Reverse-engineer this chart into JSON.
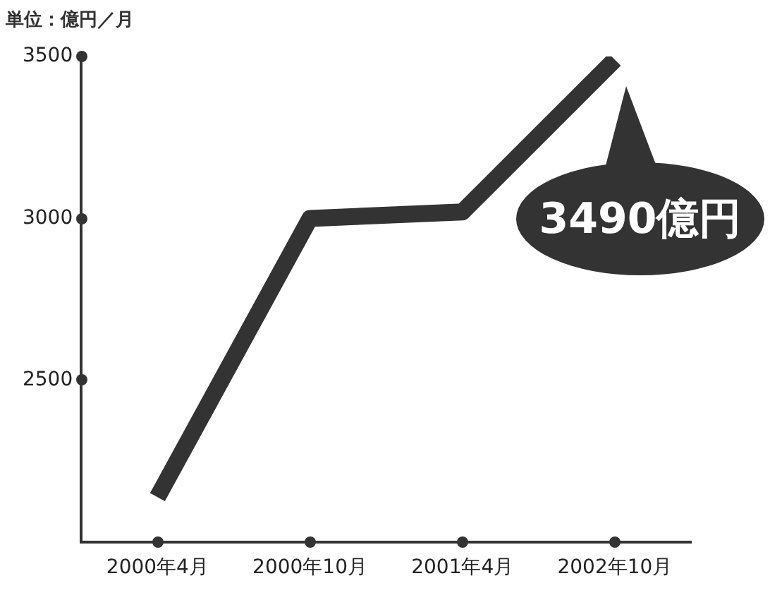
{
  "chart_data": {
    "type": "line",
    "ylabel": "単位：億円／月",
    "categories": [
      "2000年4月",
      "2000年10月",
      "2001年4月",
      "2002年10月"
    ],
    "series": [
      {
        "color": "#333333",
        "values": [
          2140,
          3000,
          3020,
          3490
        ]
      }
    ],
    "ylim": [
      2000,
      3500
    ],
    "yticks": [
      2500,
      3000,
      3500
    ],
    "grid": false,
    "legend": false,
    "marker": "none",
    "line_style": "solid",
    "annotations": [
      "3490億円"
    ]
  }
}
